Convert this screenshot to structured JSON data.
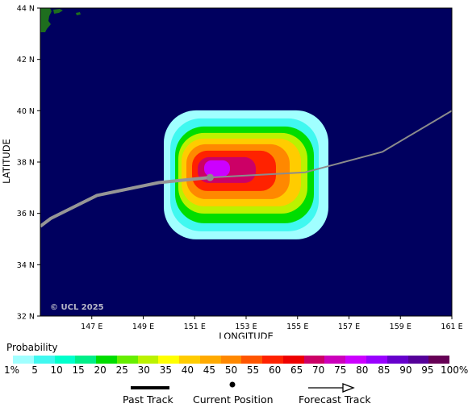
{
  "map": {
    "lat_labels": [
      "44 N",
      "42 N",
      "40 N",
      "38 N",
      "36 N",
      "34 N",
      "32 N"
    ],
    "lon_labels": [
      "147 E",
      "149 E",
      "151 E",
      "153 E",
      "155 E",
      "157 E",
      "159 E",
      "161 E"
    ],
    "xlabel": "LONGITUDE",
    "ylabel": "LATITUDE",
    "copyright": "© UCL 2025",
    "lat_range": [
      32,
      44
    ],
    "lon_range": [
      145,
      161
    ],
    "ocean_color": "#00005f",
    "land_color": "#1e6e1e",
    "past_track": [
      [
        145.0,
        35.5
      ],
      [
        145.4,
        35.8
      ],
      [
        147.2,
        36.7
      ],
      [
        149.6,
        37.2
      ],
      [
        151.6,
        37.4
      ]
    ],
    "forecast_track": [
      [
        151.6,
        37.4
      ],
      [
        155.3,
        37.6
      ],
      [
        158.3,
        38.4
      ],
      [
        161.0,
        40.0
      ]
    ],
    "current_position": [
      151.6,
      37.4
    ],
    "probability_field_center": [
      153.0,
      37.5
    ]
  },
  "legend": {
    "title": "Probability",
    "labels": [
      "1%",
      "5",
      "10",
      "15",
      "20",
      "25",
      "30",
      "35",
      "40",
      "45",
      "50",
      "55",
      "60",
      "65",
      "70",
      "75",
      "80",
      "85",
      "90",
      "95",
      "100%"
    ],
    "colors": [
      "#a0ffff",
      "#40f8f0",
      "#00ffcc",
      "#00ee88",
      "#00dd00",
      "#66ee00",
      "#bbf200",
      "#ffff00",
      "#ffcc00",
      "#ffaa00",
      "#ff8800",
      "#ff5500",
      "#ff2200",
      "#ee0000",
      "#cc0066",
      "#cc00bb",
      "#cc00ff",
      "#9900ff",
      "#6600cc",
      "#550099",
      "#660055"
    ]
  },
  "track_legend": {
    "past_label": "Past Track",
    "current_label": "Current Position",
    "forecast_label": "Forecast Track"
  }
}
